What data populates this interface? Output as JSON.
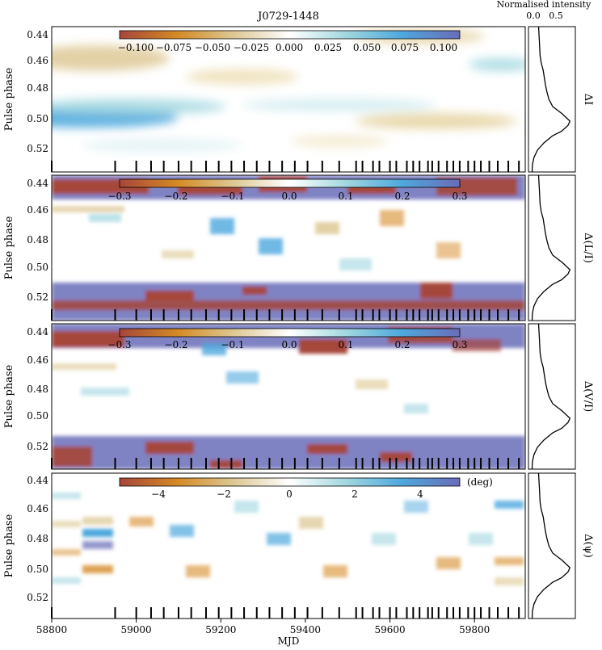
{
  "chart_data": [
    {
      "type": "heatmap",
      "title": "J0729-1448",
      "ylabel": "Pulse phase",
      "panel_label": "ΔI",
      "xlim": [
        58800,
        59920
      ],
      "ylim": [
        0.435,
        0.535
      ],
      "yticks": [
        "0.44",
        "0.46",
        "0.48",
        "0.50",
        "0.52"
      ],
      "colorbar": {
        "range": [
          -0.12,
          0.12
        ],
        "ticks": [
          "−0.100",
          "−0.075",
          "−0.050",
          "−0.025",
          "0.000",
          "0.025",
          "0.050",
          "0.075",
          "0.100"
        ],
        "unit": ""
      }
    },
    {
      "type": "heatmap",
      "ylabel": "Pulse phase",
      "panel_label": "Δ(L/I)",
      "xlim": [
        58800,
        59920
      ],
      "ylim": [
        0.435,
        0.535
      ],
      "yticks": [
        "0.44",
        "0.46",
        "0.48",
        "0.50",
        "0.52"
      ],
      "colorbar": {
        "range": [
          -0.3,
          0.3
        ],
        "ticks": [
          "−0.3",
          "−0.2",
          "−0.1",
          "0.0",
          "0.1",
          "0.2",
          "0.3"
        ],
        "unit": ""
      }
    },
    {
      "type": "heatmap",
      "ylabel": "Pulse phase",
      "panel_label": "Δ(V/I)",
      "xlim": [
        58800,
        59920
      ],
      "ylim": [
        0.435,
        0.535
      ],
      "yticks": [
        "0.44",
        "0.46",
        "0.48",
        "0.50",
        "0.52"
      ],
      "colorbar": {
        "range": [
          -0.3,
          0.3
        ],
        "ticks": [
          "−0.3",
          "−0.2",
          "−0.1",
          "0.0",
          "0.1",
          "0.2",
          "0.3"
        ],
        "unit": ""
      }
    },
    {
      "type": "heatmap",
      "ylabel": "Pulse phase",
      "panel_label": "Δ(ψ)",
      "xlabel": "MJD",
      "xlim": [
        58800,
        59920
      ],
      "ylim": [
        0.435,
        0.535
      ],
      "yticks": [
        "0.44",
        "0.46",
        "0.48",
        "0.50",
        "0.52"
      ],
      "xticks": [
        "58800",
        "59000",
        "59200",
        "59400",
        "59600",
        "59800"
      ],
      "colorbar": {
        "range": [
          -5.3,
          5.3
        ],
        "ticks": [
          "−4",
          "−2",
          "0",
          "2",
          "4"
        ],
        "unit": "(deg)"
      }
    },
    {
      "type": "line",
      "title": "Normalised intensity",
      "xticks": [
        "0.0",
        "0.5"
      ],
      "xlim": [
        0,
        1.1
      ],
      "description_points": [
        [
          0.435,
          0.18
        ],
        [
          0.445,
          0.2
        ],
        [
          0.455,
          0.22
        ],
        [
          0.46,
          0.25
        ],
        [
          0.465,
          0.3
        ],
        [
          0.47,
          0.33
        ],
        [
          0.475,
          0.36
        ],
        [
          0.48,
          0.4
        ],
        [
          0.485,
          0.45
        ],
        [
          0.49,
          0.55
        ],
        [
          0.495,
          0.8
        ],
        [
          0.5,
          1.0
        ],
        [
          0.503,
          0.95
        ],
        [
          0.507,
          0.78
        ],
        [
          0.51,
          0.55
        ],
        [
          0.515,
          0.32
        ],
        [
          0.52,
          0.15
        ],
        [
          0.525,
          0.06
        ],
        [
          0.53,
          0.02
        ],
        [
          0.535,
          0.01
        ]
      ]
    }
  ],
  "observation_mjds": [
    58800,
    58950,
    59000,
    59035,
    59065,
    59100,
    59130,
    59165,
    59195,
    59225,
    59255,
    59285,
    59315,
    59345,
    59375,
    59405,
    59440,
    59480,
    59520,
    59535,
    59560,
    59575,
    59600,
    59615,
    59640,
    59655,
    59670,
    59690,
    59700,
    59715,
    59735,
    59750,
    59765,
    59785,
    59800,
    59815,
    59835,
    59855,
    59880,
    59905
  ]
}
